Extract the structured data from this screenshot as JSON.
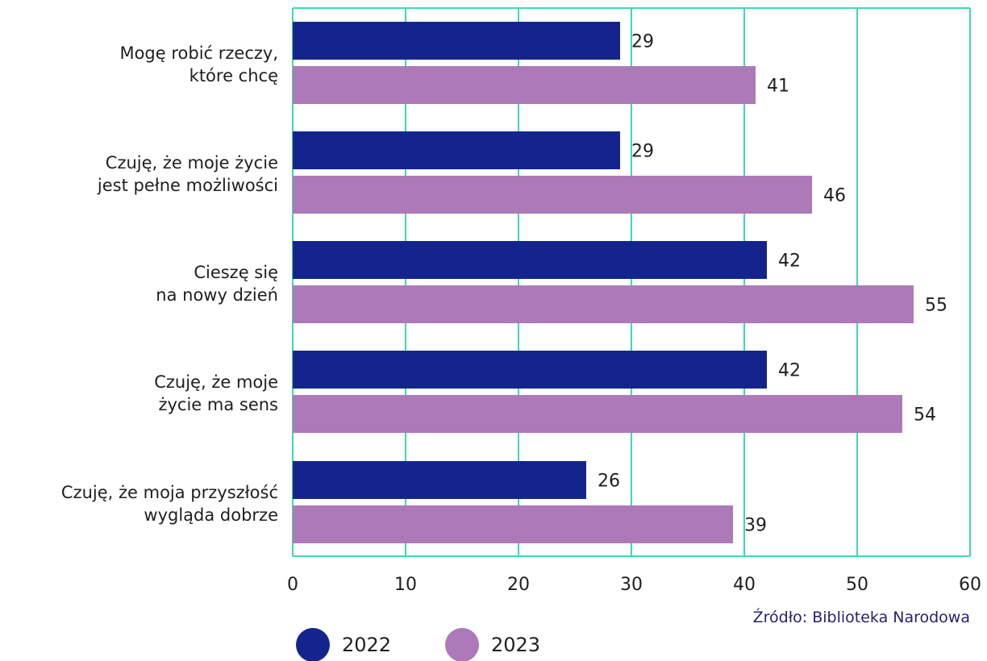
{
  "chart_data": {
    "type": "bar",
    "orientation": "horizontal",
    "categories": [
      [
        "Mogę robić rzeczy,",
        "które chcę"
      ],
      [
        "Czuję, że moje życie",
        "jest pełne możliwości"
      ],
      [
        "Cieszę się",
        "na nowy dzień"
      ],
      [
        "Czuję, że moje",
        "życie ma sens"
      ],
      [
        "Czuję, że moja przyszłość",
        "wygląda dobrze"
      ]
    ],
    "series": [
      {
        "name": "2022",
        "values": [
          29,
          29,
          42,
          42,
          26
        ],
        "color": "#13258d"
      },
      {
        "name": "2023",
        "values": [
          41,
          46,
          55,
          54,
          39
        ],
        "color": "#ad79b9"
      }
    ],
    "xlim": [
      0,
      60
    ],
    "xticks": [
      0,
      10,
      20,
      30,
      40,
      50,
      60
    ],
    "grid": true,
    "grid_color": "#3fd9b1",
    "legend": "bottom-left",
    "source": "Źródło: Biblioteka Narodowa"
  }
}
